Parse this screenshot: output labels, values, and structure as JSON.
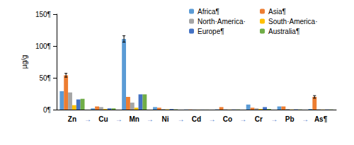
{
  "chart_data": {
    "type": "bar",
    "y_label": "µg/g",
    "categories": [
      "Zn",
      "Cu",
      "Mn",
      "Ni",
      "Cd",
      "Co",
      "Cr",
      "Pb",
      "As¶"
    ],
    "annotations": [
      "→",
      "→",
      "→",
      "→",
      "→",
      "→",
      "→",
      "→"
    ],
    "ylim": [
      0,
      150
    ],
    "yticks": [
      {
        "value": 0,
        "label": "0¶"
      },
      {
        "value": 50,
        "label": "50¶"
      },
      {
        "value": 100,
        "label": "100¶"
      },
      {
        "value": 150,
        "label": "150¶"
      }
    ],
    "grid": false,
    "legend": "top-right",
    "series": [
      {
        "name": "Africa¶",
        "color": "#5b9bd5",
        "values": [
          29,
          2,
          111,
          4,
          0.3,
          0.5,
          8,
          5,
          1
        ],
        "errors": [
          null,
          null,
          5,
          null,
          null,
          null,
          null,
          null,
          null
        ]
      },
      {
        "name": "Asia¶",
        "color": "#ed7d31",
        "values": [
          54,
          5,
          20,
          3,
          0.3,
          4,
          3,
          5,
          20
        ],
        "errors": [
          3,
          null,
          null,
          null,
          null,
          null,
          null,
          null,
          2
        ]
      },
      {
        "name": "North·America·",
        "color": "#a5a5a5",
        "values": [
          27,
          4,
          11,
          1,
          0.2,
          0.5,
          2,
          1,
          0.5
        ]
      },
      {
        "name": "South·America·",
        "color": "#ffc000",
        "values": [
          7,
          1,
          3,
          0.5,
          0.1,
          0.2,
          1,
          0.3,
          0.2
        ]
      },
      {
        "name": "Europe¶",
        "color": "#4472c4",
        "values": [
          16,
          2,
          24,
          1,
          0.1,
          0.3,
          4,
          0.5,
          0.3
        ]
      },
      {
        "name": "Australia¶",
        "color": "#70ad47",
        "values": [
          17,
          2,
          24,
          0.5,
          0.1,
          0.3,
          1,
          0.3,
          0.3
        ]
      }
    ]
  }
}
